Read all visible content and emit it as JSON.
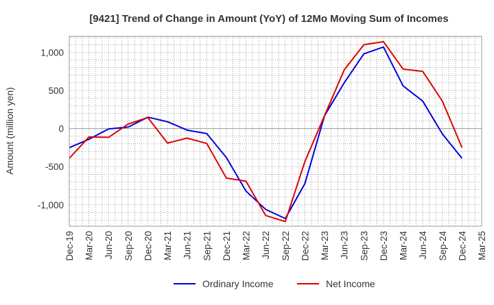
{
  "chart_data": {
    "type": "line",
    "title": "[9421]  Trend of Change in Amount (YoY) of 12Mo Moving Sum of Incomes",
    "xlabel": "",
    "ylabel": "Amount (million yen)",
    "ylim": [
      -1280,
      1210
    ],
    "yticks": [
      -1000,
      -500,
      0,
      500,
      1000
    ],
    "ytick_labels": [
      "-1,000",
      "-500",
      "0",
      "500",
      "1,000"
    ],
    "categories": [
      "Dec-19",
      "Mar-20",
      "Jun-20",
      "Sep-20",
      "Dec-20",
      "Mar-21",
      "Jun-21",
      "Sep-21",
      "Dec-21",
      "Mar-22",
      "Jun-22",
      "Sep-22",
      "Dec-22",
      "Mar-23",
      "Jun-23",
      "Sep-23",
      "Dec-23",
      "Mar-24",
      "Jun-24",
      "Sep-24",
      "Dec-24",
      "Mar-25"
    ],
    "grid": true,
    "legend_position": "bottom-center",
    "series": [
      {
        "name": "Ordinary Income",
        "color": "#0000dd",
        "values": [
          -250,
          -140,
          -5,
          20,
          150,
          90,
          -20,
          -65,
          -380,
          -820,
          -1060,
          -1180,
          -720,
          170,
          600,
          980,
          1070,
          560,
          360,
          -70,
          -390,
          null
        ]
      },
      {
        "name": "Net Income",
        "color": "#dd0000",
        "values": [
          -390,
          -110,
          -115,
          60,
          145,
          -190,
          -125,
          -195,
          -650,
          -690,
          -1140,
          -1220,
          -430,
          170,
          770,
          1100,
          1140,
          780,
          750,
          360,
          -250,
          null
        ]
      }
    ]
  }
}
